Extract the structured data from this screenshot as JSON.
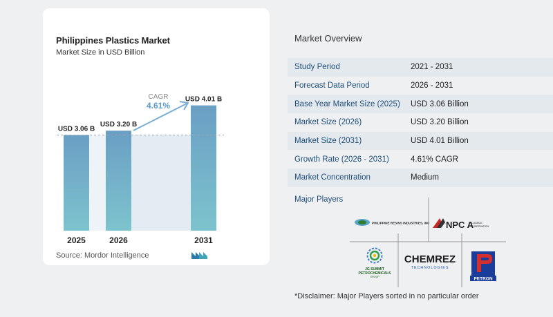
{
  "chart_data": {
    "type": "bar",
    "title": "Philippines Plastics Market",
    "subtitle": "Market Size in USD Billion",
    "categories": [
      "2025",
      "2026",
      "2031"
    ],
    "values": [
      3.06,
      3.2,
      4.01
    ],
    "data_labels": [
      "USD 3.06 B",
      "USD 3.20 B",
      "USD 4.01 B"
    ],
    "ylim": [
      0,
      4.2
    ],
    "annotation": {
      "label": "CAGR",
      "value": "4.61%"
    },
    "grid": false,
    "bar_color": "#6a9fc4",
    "bar_color_bottom": "#7dc3cd"
  },
  "source": "Source:  Mordor Intelligence",
  "overview": {
    "title": "Market Overview",
    "rows": [
      {
        "label": "Study Period",
        "value": "2021 - 2031"
      },
      {
        "label": "Forecast Data Period",
        "value": "2026 - 2031"
      },
      {
        "label": "Base Year Market Size (2025)",
        "value": "USD 3.06 Billion"
      },
      {
        "label": "Market Size (2026)",
        "value": "USD 3.20 Billion"
      },
      {
        "label": "Market Size (2031)",
        "value": "USD 4.01 Billion"
      },
      {
        "label": "Growth Rate (2026 - 2031)",
        "value": "4.61% CAGR"
      },
      {
        "label": "Market Concentration",
        "value": "Medium"
      }
    ],
    "players_title": "Major Players",
    "players": [
      "PHILIPPINE RESINS INDUSTRIES, INC",
      "NPC ALLIANCE CORPORATION",
      "JG SUMMIT PETROCHEMICALS GROUP",
      "CHEMREZ TECHNOLOGIES",
      "PETRON"
    ],
    "disclaimer": "*Disclaimer: Major Players sorted in no particular order"
  }
}
